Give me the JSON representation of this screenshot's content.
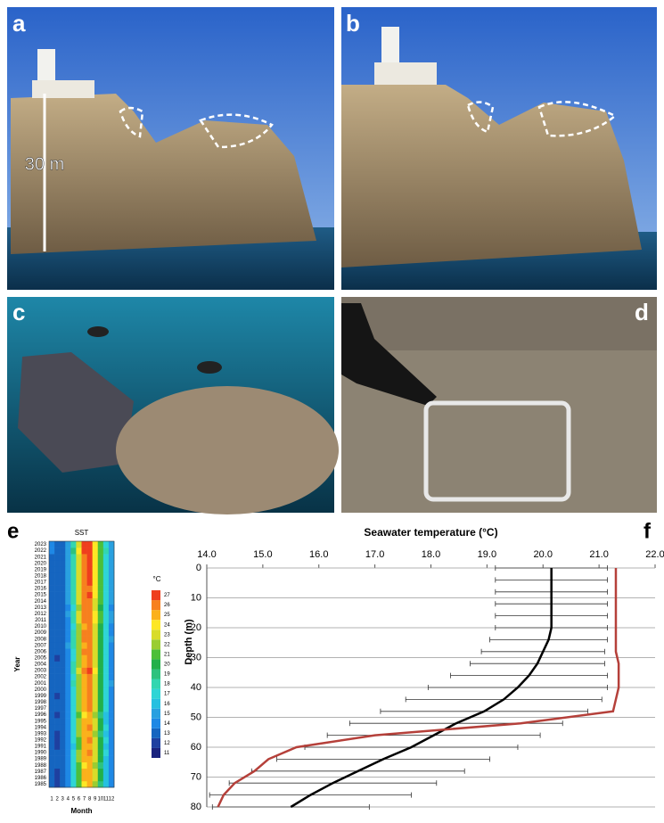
{
  "panels": [
    "a",
    "b",
    "c",
    "d",
    "e",
    "f"
  ],
  "annotation": "30 m",
  "chart_data": [
    {
      "type": "heatmap",
      "title": "SST",
      "xlabel": "Month",
      "ylabel": "Year",
      "x": [
        1,
        2,
        3,
        4,
        5,
        6,
        7,
        8,
        9,
        10,
        11,
        12
      ],
      "y": [
        1985,
        1986,
        1987,
        1988,
        1989,
        1990,
        1991,
        1992,
        1993,
        1994,
        1995,
        1996,
        1997,
        1998,
        1999,
        2000,
        2001,
        2002,
        2003,
        2004,
        2005,
        2006,
        2007,
        2008,
        2009,
        2010,
        2011,
        2012,
        2013,
        2014,
        2015,
        2016,
        2017,
        2018,
        2019,
        2020,
        2021,
        2022,
        2023
      ],
      "values": [
        [
          13.2,
          12.8,
          13.1,
          14.3,
          17.2,
          21.6,
          24.8,
          25.4,
          22.8,
          19.9,
          16.6,
          14.3
        ],
        [
          13.1,
          12.7,
          13.2,
          14.4,
          17.4,
          21.8,
          25.0,
          25.5,
          23.0,
          20.0,
          16.7,
          14.2
        ],
        [
          13.3,
          12.6,
          13.0,
          14.2,
          17.0,
          21.4,
          25.3,
          25.9,
          23.4,
          20.3,
          16.8,
          14.4
        ],
        [
          13.4,
          13.0,
          13.3,
          14.5,
          17.5,
          21.9,
          24.9,
          25.3,
          22.9,
          19.8,
          16.5,
          14.5
        ],
        [
          13.5,
          13.1,
          13.4,
          14.6,
          17.6,
          22.0,
          25.1,
          25.6,
          23.1,
          20.1,
          16.9,
          14.6
        ],
        [
          13.6,
          13.2,
          13.5,
          14.7,
          17.8,
          22.3,
          25.5,
          26.0,
          23.3,
          20.4,
          17.0,
          14.7
        ],
        [
          13.2,
          12.7,
          13.0,
          14.1,
          16.9,
          21.5,
          25.2,
          25.8,
          23.0,
          20.0,
          16.6,
          14.3
        ],
        [
          13.3,
          12.9,
          13.2,
          14.4,
          17.3,
          21.9,
          25.4,
          26.1,
          23.5,
          20.5,
          17.1,
          14.5
        ],
        [
          13.4,
          12.8,
          13.1,
          14.5,
          17.5,
          22.1,
          25.0,
          25.5,
          22.9,
          19.9,
          16.7,
          14.4
        ],
        [
          13.6,
          13.1,
          13.4,
          14.7,
          17.9,
          22.5,
          25.9,
          26.4,
          23.6,
          20.6,
          17.2,
          14.8
        ],
        [
          13.5,
          13.0,
          13.3,
          14.4,
          17.4,
          22.0,
          25.3,
          25.8,
          23.2,
          20.2,
          16.9,
          14.6
        ],
        [
          13.3,
          12.8,
          13.1,
          14.3,
          17.1,
          21.7,
          24.9,
          25.4,
          22.8,
          19.8,
          16.6,
          14.4
        ],
        [
          13.6,
          13.2,
          13.6,
          14.8,
          17.9,
          22.4,
          25.6,
          26.2,
          23.6,
          20.7,
          17.3,
          14.9
        ],
        [
          13.5,
          13.0,
          13.4,
          14.6,
          17.7,
          22.3,
          25.7,
          26.3,
          23.5,
          20.4,
          17.0,
          14.7
        ],
        [
          13.4,
          12.9,
          13.2,
          14.5,
          17.6,
          22.2,
          25.5,
          26.0,
          23.3,
          20.3,
          17.0,
          14.6
        ],
        [
          13.5,
          13.1,
          13.4,
          14.7,
          17.8,
          22.4,
          25.6,
          26.1,
          23.4,
          20.5,
          17.1,
          14.7
        ],
        [
          13.7,
          13.2,
          13.6,
          14.9,
          18.1,
          22.7,
          25.9,
          26.5,
          23.8,
          20.8,
          17.4,
          15.0
        ],
        [
          13.6,
          13.1,
          13.5,
          14.7,
          17.9,
          22.5,
          25.7,
          26.2,
          23.6,
          20.6,
          17.2,
          14.8
        ],
        [
          13.5,
          13.0,
          13.4,
          14.8,
          18.4,
          23.5,
          26.8,
          27.2,
          24.1,
          20.9,
          17.3,
          14.8
        ],
        [
          13.6,
          13.2,
          13.5,
          14.8,
          18.0,
          22.6,
          25.8,
          26.4,
          23.7,
          20.7,
          17.3,
          14.9
        ],
        [
          13.3,
          12.8,
          13.2,
          14.5,
          17.6,
          22.2,
          25.6,
          26.1,
          23.4,
          20.4,
          17.0,
          14.6
        ],
        [
          13.5,
          13.0,
          13.4,
          14.7,
          17.9,
          22.6,
          26.0,
          26.3,
          23.6,
          20.8,
          17.4,
          14.9
        ],
        [
          13.7,
          13.3,
          13.6,
          15.0,
          18.2,
          22.8,
          25.9,
          26.4,
          23.7,
          20.7,
          17.3,
          14.9
        ],
        [
          13.6,
          13.2,
          13.5,
          14.8,
          18.0,
          22.7,
          26.0,
          26.5,
          23.8,
          20.9,
          17.5,
          15.0
        ],
        [
          13.5,
          13.1,
          13.4,
          14.8,
          18.1,
          22.9,
          26.2,
          26.7,
          23.9,
          20.9,
          17.4,
          14.9
        ],
        [
          13.4,
          13.0,
          13.3,
          14.6,
          17.8,
          22.5,
          25.9,
          26.3,
          23.6,
          20.6,
          17.2,
          14.8
        ],
        [
          13.6,
          13.2,
          13.6,
          14.9,
          18.2,
          23.0,
          26.1,
          26.6,
          24.0,
          21.0,
          17.5,
          15.0
        ],
        [
          13.7,
          13.3,
          13.6,
          15.0,
          18.3,
          23.2,
          26.5,
          26.9,
          24.1,
          21.1,
          17.6,
          15.1
        ],
        [
          13.5,
          13.1,
          13.4,
          14.7,
          17.9,
          22.7,
          26.0,
          26.5,
          23.8,
          20.8,
          17.4,
          14.9
        ],
        [
          13.8,
          13.4,
          13.7,
          15.1,
          18.3,
          23.0,
          26.0,
          26.4,
          23.9,
          21.0,
          17.6,
          15.1
        ],
        [
          13.7,
          13.3,
          13.6,
          15.0,
          18.4,
          23.4,
          26.8,
          27.1,
          24.2,
          21.1,
          17.7,
          15.2
        ],
        [
          13.8,
          13.4,
          13.7,
          15.1,
          18.3,
          23.1,
          26.3,
          26.8,
          24.1,
          21.0,
          17.6,
          15.1
        ],
        [
          13.7,
          13.3,
          13.7,
          15.0,
          18.5,
          23.5,
          26.7,
          27.0,
          24.2,
          21.2,
          17.7,
          15.2
        ],
        [
          13.8,
          13.3,
          13.7,
          15.1,
          18.6,
          23.6,
          26.9,
          27.2,
          24.3,
          21.2,
          17.8,
          15.2
        ],
        [
          13.9,
          13.5,
          13.8,
          15.2,
          18.5,
          23.4,
          26.8,
          27.1,
          24.2,
          21.3,
          17.8,
          15.3
        ],
        [
          13.8,
          13.4,
          13.8,
          15.1,
          18.6,
          23.5,
          26.7,
          27.0,
          24.2,
          21.2,
          17.7,
          15.2
        ],
        [
          13.9,
          13.5,
          13.8,
          15.2,
          18.7,
          23.7,
          26.9,
          27.3,
          24.4,
          21.3,
          17.9,
          15.3
        ],
        [
          14.0,
          13.6,
          13.9,
          15.3,
          19.0,
          24.2,
          27.4,
          27.6,
          24.7,
          21.5,
          18.0,
          15.4
        ],
        [
          14.0,
          13.6,
          13.9,
          15.3,
          18.8,
          23.9,
          27.1,
          27.4,
          24.5,
          21.4,
          17.9,
          15.4
        ]
      ],
      "colorbar": {
        "label": "°C",
        "ticks": [
          11,
          12,
          13,
          14,
          15,
          16,
          17,
          18,
          19,
          20,
          21,
          22,
          23,
          24,
          25,
          26,
          27
        ],
        "colors": [
          "#1a237e",
          "#1e40a0",
          "#1565c0",
          "#1e88e5",
          "#29a0e0",
          "#26c0e0",
          "#2fd5d5",
          "#33d6b0",
          "#2ec27e",
          "#22b04a",
          "#4cbf3a",
          "#9acd32",
          "#d8dc2a",
          "#fde725",
          "#fbb11b",
          "#f7801e",
          "#ef3e1d"
        ]
      }
    },
    {
      "type": "line",
      "title": "Seawater temperature (°C)",
      "ylabel": "Depth (m)",
      "xlim": [
        14,
        22
      ],
      "ylim": [
        0,
        80
      ],
      "xticks": [
        {
          "value": 14,
          "label": "14.0"
        },
        {
          "value": 15,
          "label": "15.0"
        },
        {
          "value": 16,
          "label": "16.0"
        },
        {
          "value": 17,
          "label": "17.0"
        },
        {
          "value": 18,
          "label": "18.0"
        },
        {
          "value": 19,
          "label": "19.0"
        },
        {
          "value": 20,
          "label": "20.0"
        },
        {
          "value": 21,
          "label": "21.0"
        },
        {
          "value": 22,
          "label": "22.0"
        }
      ],
      "yticks": [
        0,
        10,
        20,
        30,
        40,
        50,
        60,
        70,
        80
      ],
      "grid": true,
      "y": [
        0,
        4,
        8,
        12,
        16,
        20,
        24,
        28,
        32,
        36,
        40,
        44,
        48,
        52,
        56,
        60,
        64,
        68,
        72,
        76,
        80
      ],
      "series": [
        {
          "color": "#000000",
          "values": [
            20.15,
            20.15,
            20.15,
            20.15,
            20.15,
            20.15,
            20.1,
            20.0,
            19.9,
            19.75,
            19.55,
            19.3,
            18.95,
            18.45,
            18.05,
            17.65,
            17.15,
            16.7,
            16.25,
            15.85,
            15.5
          ],
          "error": [
            1.0,
            1.0,
            1.0,
            1.0,
            1.0,
            1.0,
            1.05,
            1.1,
            1.2,
            1.4,
            1.6,
            1.75,
            1.85,
            1.9,
            1.9,
            1.9,
            1.9,
            1.9,
            1.85,
            1.8,
            1.4
          ]
        },
        {
          "color": "#b5403a",
          "values": [
            21.3,
            21.3,
            21.3,
            21.3,
            21.3,
            21.3,
            21.3,
            21.3,
            21.35,
            21.35,
            21.35,
            21.3,
            21.25,
            19.6,
            17.0,
            15.6,
            15.1,
            14.85,
            14.5,
            14.3,
            14.2
          ]
        }
      ]
    }
  ]
}
